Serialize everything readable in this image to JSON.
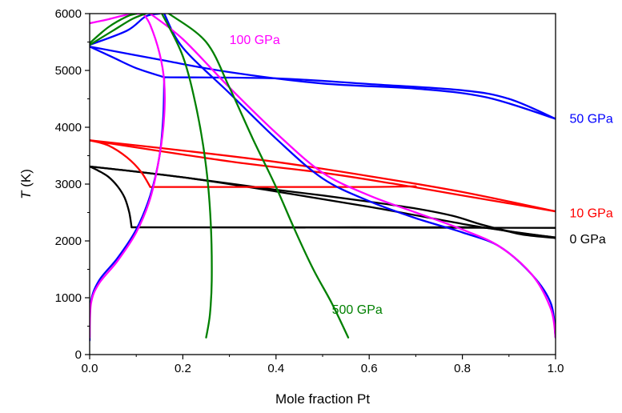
{
  "chart_data": {
    "type": "line",
    "xlabel": "Mole fraction Pt",
    "ylabel_symbol": "T",
    "ylabel_unit": "(K)",
    "xlim": [
      0,
      1
    ],
    "ylim": [
      0,
      6000
    ],
    "x_ticks": [
      "0.0",
      "0.2",
      "0.4",
      "0.6",
      "0.8",
      "1.0"
    ],
    "x_tick_values": [
      0,
      0.2,
      0.4,
      0.6,
      0.8,
      1.0
    ],
    "y_ticks": [
      "0",
      "1000",
      "2000",
      "3000",
      "4000",
      "5000",
      "6000"
    ],
    "y_tick_values": [
      0,
      1000,
      2000,
      3000,
      4000,
      5000,
      6000
    ],
    "grid": false,
    "series": [
      {
        "name": "0 GPa",
        "color": "#000000",
        "label_anchor": [
          1.03,
          2040
        ],
        "curves": [
          [
            [
              0,
              3310
            ],
            [
              0.02,
              3230
            ],
            [
              0.04,
              3130
            ],
            [
              0.06,
              2960
            ],
            [
              0.075,
              2760
            ],
            [
              0.085,
              2500
            ],
            [
              0.09,
              2240
            ]
          ],
          [
            [
              0,
              3310
            ],
            [
              0.1,
              3220
            ],
            [
              0.2,
              3120
            ],
            [
              0.3,
              3010
            ],
            [
              0.4,
              2900
            ],
            [
              0.5,
              2800
            ],
            [
              0.6,
              2690
            ],
            [
              0.7,
              2570
            ],
            [
              0.78,
              2440
            ],
            [
              0.84,
              2290
            ],
            [
              0.9,
              2170
            ],
            [
              0.95,
              2110
            ],
            [
              1.0,
              2060
            ]
          ],
          [
            [
              0,
              3310
            ],
            [
              0.2,
              3120
            ],
            [
              0.4,
              2870
            ],
            [
              0.6,
              2600
            ],
            [
              0.8,
              2300
            ],
            [
              0.9,
              2170
            ],
            [
              1.0,
              2060
            ]
          ],
          [
            [
              0.09,
              2240
            ],
            [
              0.3,
              2240
            ],
            [
              0.5,
              2240
            ],
            [
              0.7,
              2240
            ],
            [
              0.85,
              2230
            ],
            [
              0.93,
              2110
            ],
            [
              1.0,
              2050
            ]
          ],
          [
            [
              0.09,
              2240
            ],
            [
              1.0,
              2230
            ]
          ]
        ]
      },
      {
        "name": "10 GPa",
        "color": "#ff0000",
        "label_anchor": [
          1.03,
          2500
        ],
        "curves": [
          [
            [
              0,
              3770
            ],
            [
              0.04,
              3680
            ],
            [
              0.08,
              3470
            ],
            [
              0.11,
              3220
            ],
            [
              0.13,
              2950
            ]
          ],
          [
            [
              0,
              3770
            ],
            [
              0.2,
              3590
            ],
            [
              0.4,
              3390
            ],
            [
              0.6,
              3140
            ],
            [
              0.8,
              2860
            ],
            [
              1.0,
              2520
            ]
          ],
          [
            [
              0,
              3770
            ],
            [
              0.3,
              3400
            ],
            [
              0.5,
              3200
            ],
            [
              0.65,
              3010
            ],
            [
              0.8,
              2800
            ],
            [
              1.0,
              2520
            ]
          ],
          [
            [
              0.13,
              2950
            ],
            [
              0.4,
              2950
            ],
            [
              0.6,
              2950
            ],
            [
              0.7,
              2960
            ]
          ]
        ]
      },
      {
        "name": "50 GPa",
        "color": "#0000ff",
        "label_anchor": [
          1.03,
          4160
        ],
        "curves": [
          [
            [
              0,
              250
            ],
            [
              0.002,
              900
            ],
            [
              0.02,
              1300
            ],
            [
              0.06,
              1700
            ],
            [
              0.1,
              2200
            ],
            [
              0.13,
              2800
            ],
            [
              0.15,
              3500
            ],
            [
              0.158,
              4200
            ],
            [
              0.16,
              4880
            ]
          ],
          [
            [
              0,
              5420
            ],
            [
              0.05,
              5230
            ],
            [
              0.1,
              5040
            ],
            [
              0.16,
              4880
            ]
          ],
          [
            [
              0,
              5420
            ],
            [
              0.15,
              5190
            ],
            [
              0.3,
              4970
            ],
            [
              0.5,
              4770
            ],
            [
              0.7,
              4680
            ],
            [
              0.85,
              4530
            ],
            [
              1.0,
              4150
            ]
          ],
          [
            [
              0.16,
              4880
            ],
            [
              0.4,
              4860
            ],
            [
              0.6,
              4760
            ],
            [
              0.8,
              4650
            ],
            [
              0.9,
              4500
            ],
            [
              1.0,
              4150
            ]
          ],
          [
            [
              0,
              5450
            ],
            [
              0.08,
              5700
            ],
            [
              0.12,
              5950
            ],
            [
              0.15,
              6000
            ]
          ],
          [
            [
              0.16,
              6000
            ],
            [
              0.2,
              5400
            ],
            [
              0.3,
              4600
            ],
            [
              0.4,
              3800
            ],
            [
              0.5,
              3100
            ],
            [
              0.6,
              2700
            ],
            [
              0.7,
              2400
            ],
            [
              0.8,
              2150
            ],
            [
              0.88,
              1900
            ],
            [
              0.95,
              1400
            ],
            [
              0.99,
              900
            ],
            [
              1.0,
              300
            ]
          ]
        ]
      },
      {
        "name": "100 GPa",
        "color": "#ff00ff",
        "label_anchor": [
          0.3,
          5550
        ],
        "curves": [
          [
            [
              0,
              300
            ],
            [
              0.003,
              900
            ],
            [
              0.02,
              1250
            ],
            [
              0.06,
              1650
            ],
            [
              0.1,
              2150
            ],
            [
              0.13,
              2750
            ],
            [
              0.15,
              3500
            ],
            [
              0.16,
              4200
            ],
            [
              0.16,
              4800
            ],
            [
              0.15,
              5300
            ],
            [
              0.13,
              5800
            ],
            [
              0.115,
              6000
            ]
          ],
          [
            [
              0,
              5830
            ],
            [
              0.04,
              5900
            ],
            [
              0.08,
              5980
            ],
            [
              0.11,
              6000
            ]
          ],
          [
            [
              0.13,
              6000
            ],
            [
              0.2,
              5550
            ],
            [
              0.3,
              4700
            ],
            [
              0.4,
              3900
            ],
            [
              0.5,
              3200
            ],
            [
              0.6,
              2800
            ],
            [
              0.7,
              2500
            ],
            [
              0.8,
              2200
            ],
            [
              0.88,
              1900
            ],
            [
              0.95,
              1400
            ],
            [
              0.99,
              800
            ],
            [
              1.0,
              300
            ]
          ]
        ]
      },
      {
        "name": "500 GPa",
        "color": "#008000",
        "label_anchor": [
          0.52,
          800
        ],
        "curves": [
          [
            [
              0,
              5450
            ],
            [
              0.05,
              5700
            ],
            [
              0.09,
              5900
            ],
            [
              0.12,
              6000
            ]
          ],
          [
            [
              0,
              5480
            ],
            [
              0.04,
              5760
            ],
            [
              0.08,
              5950
            ],
            [
              0.1,
              6000
            ]
          ],
          [
            [
              0.155,
              6000
            ],
            [
              0.2,
              5250
            ],
            [
              0.23,
              4300
            ],
            [
              0.25,
              3300
            ],
            [
              0.26,
              2300
            ],
            [
              0.262,
              1300
            ],
            [
              0.258,
              700
            ],
            [
              0.25,
              300
            ]
          ],
          [
            [
              0.17,
              6000
            ],
            [
              0.25,
              5500
            ],
            [
              0.3,
              4700
            ],
            [
              0.35,
              3800
            ],
            [
              0.4,
              2950
            ],
            [
              0.44,
              2200
            ],
            [
              0.48,
              1500
            ],
            [
              0.52,
              900
            ],
            [
              0.555,
              300
            ]
          ]
        ]
      }
    ]
  }
}
